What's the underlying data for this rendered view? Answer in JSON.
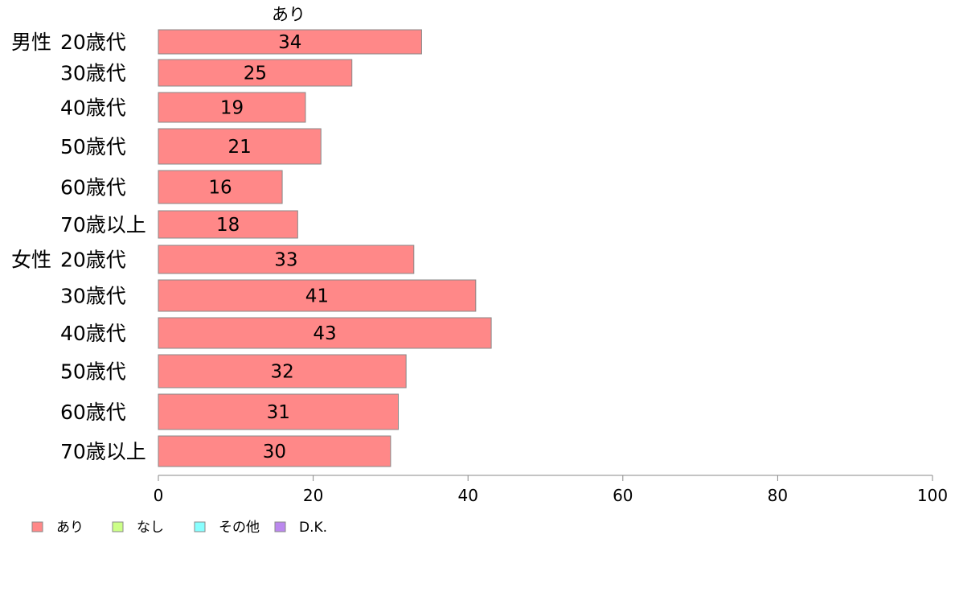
{
  "chart_data": {
    "type": "bar",
    "orientation": "horizontal",
    "series_header": "あり",
    "categories": [
      {
        "group": "男性",
        "label": "20歳代"
      },
      {
        "group": "",
        "label": "30歳代"
      },
      {
        "group": "",
        "label": "40歳代"
      },
      {
        "group": "",
        "label": "50歳代"
      },
      {
        "group": "",
        "label": "60歳代"
      },
      {
        "group": "",
        "label": "70歳以上"
      },
      {
        "group": "女性",
        "label": "20歳代"
      },
      {
        "group": "",
        "label": "30歳代"
      },
      {
        "group": "",
        "label": "40歳代"
      },
      {
        "group": "",
        "label": "50歳代"
      },
      {
        "group": "",
        "label": "60歳代"
      },
      {
        "group": "",
        "label": "70歳以上"
      }
    ],
    "series": [
      {
        "name": "あり",
        "color": "#ff8888",
        "values": [
          34,
          25,
          19,
          21,
          16,
          18,
          33,
          41,
          43,
          32,
          31,
          30
        ]
      }
    ],
    "xlim": [
      0,
      100
    ],
    "xticks": [
      0,
      20,
      40,
      60,
      80,
      100
    ],
    "grid": false,
    "legend": {
      "placement": "bottom-left",
      "items": [
        {
          "name": "あり",
          "color": "#ff8888"
        },
        {
          "name": "なし",
          "color": "#ccff88"
        },
        {
          "name": "その他",
          "color": "#88ffff"
        },
        {
          "name": "D.K.",
          "color": "#bb88ee"
        }
      ]
    }
  }
}
